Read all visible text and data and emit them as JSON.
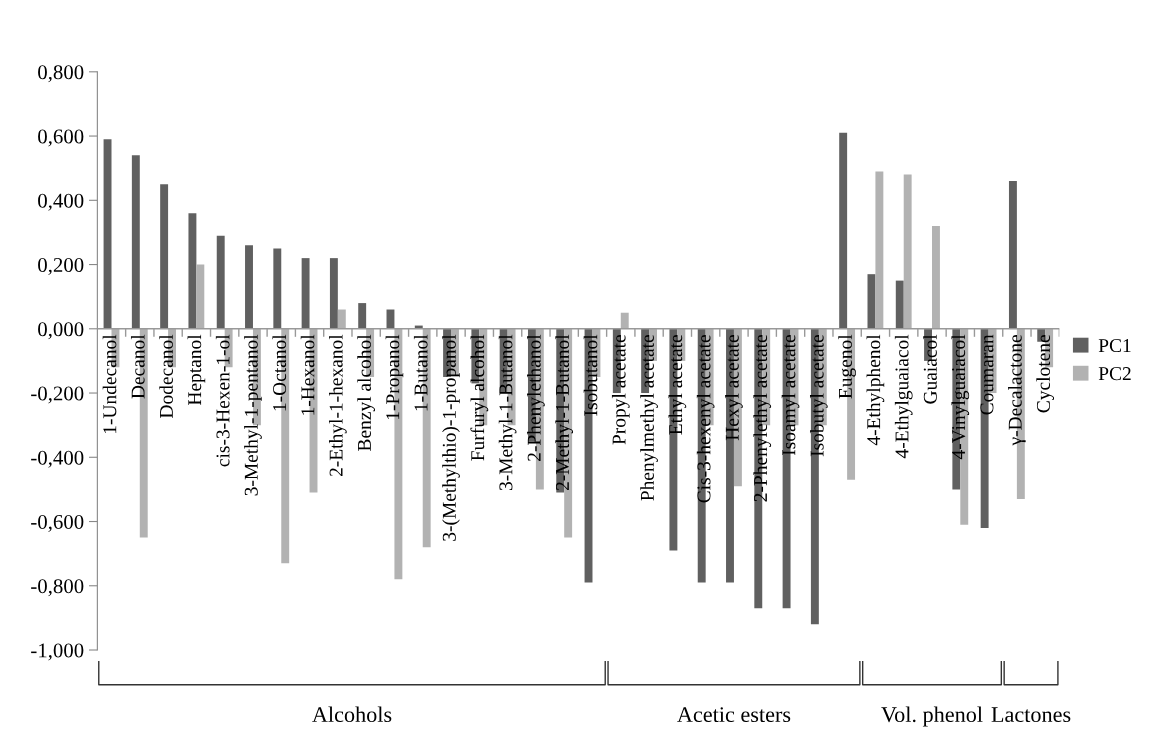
{
  "chart_data": {
    "type": "bar",
    "categories": [
      "1-Undecanol",
      "Decanol",
      "Dodecanol",
      "Heptanol",
      "cis-3-Hexen-1-ol",
      "3-Methyl-1-pentanol",
      "1-Octanol",
      "1-Hexanol",
      "2-Ethyl-1-hexanol",
      "Benzyl alcohol",
      "1-Propanol",
      "1-Butanol",
      "3-(Methylthio)-1-propanol",
      "Furfuryl alcohol",
      "3-Methyl-1-Butanol",
      "2-Phenylethanol",
      "2-Methyl-1-Butanol",
      "Isobutanol",
      "Propyl acetate",
      "Phenylmethyl acetate",
      "Ethyl acetate",
      "Cis-3-hexenyl acetate",
      "Hexyl acetate",
      "2-Phenylethyl acetate",
      "Isoamyl acetate",
      "Isobutyl acetate",
      "Eugenol",
      "4-Ethylphenol",
      "4-Ethylguaiacol",
      "Guaiacol",
      "4-Vinylguaiacol",
      "Coumaran",
      "γ-Decalactone",
      "Cyclotene"
    ],
    "series": [
      {
        "name": "PC1",
        "color": "#606060",
        "values": [
          0.59,
          0.54,
          0.45,
          0.36,
          0.29,
          0.26,
          0.25,
          0.22,
          0.22,
          0.08,
          0.06,
          0.01,
          -0.15,
          -0.17,
          -0.2,
          -0.35,
          -0.51,
          -0.79,
          -0.2,
          -0.2,
          -0.69,
          -0.79,
          -0.79,
          -0.87,
          -0.87,
          -0.92,
          0.61,
          0.17,
          0.15,
          -0.1,
          -0.5,
          -0.62,
          0.46,
          -0.04
        ]
      },
      {
        "name": "PC2",
        "color": "#b2b2b2",
        "values": [
          -0.12,
          -0.65,
          -0.12,
          0.2,
          -0.12,
          -0.3,
          -0.73,
          -0.51,
          0.06,
          -0.15,
          -0.78,
          -0.68,
          -0.15,
          -0.3,
          -0.3,
          -0.5,
          -0.65,
          -0.15,
          0.05,
          -0.1,
          -0.1,
          -0.3,
          -0.49,
          -0.3,
          -0.3,
          -0.3,
          -0.47,
          0.49,
          0.48,
          0.32,
          -0.61,
          -0.2,
          -0.53,
          -0.12
        ]
      }
    ],
    "ylim": [
      -1.0,
      0.8
    ],
    "yticks": [
      {
        "value": -1.0,
        "label": "-1,000"
      },
      {
        "value": -0.8,
        "label": "-0,800"
      },
      {
        "value": -0.6,
        "label": "-0,600"
      },
      {
        "value": -0.4,
        "label": "-0,400"
      },
      {
        "value": -0.2,
        "label": "-0,200"
      },
      {
        "value": 0,
        "label": "0,000"
      },
      {
        "value": 0.2,
        "label": "0,200"
      },
      {
        "value": 0.4,
        "label": "0,400"
      },
      {
        "value": 0.6,
        "label": "0,600"
      },
      {
        "value": 0.8,
        "label": "0,800"
      }
    ],
    "annotations": [
      "Alcohols",
      "Acetic esters",
      "Vol. phenol",
      "Lactones"
    ],
    "grid": false,
    "legend": "right"
  }
}
